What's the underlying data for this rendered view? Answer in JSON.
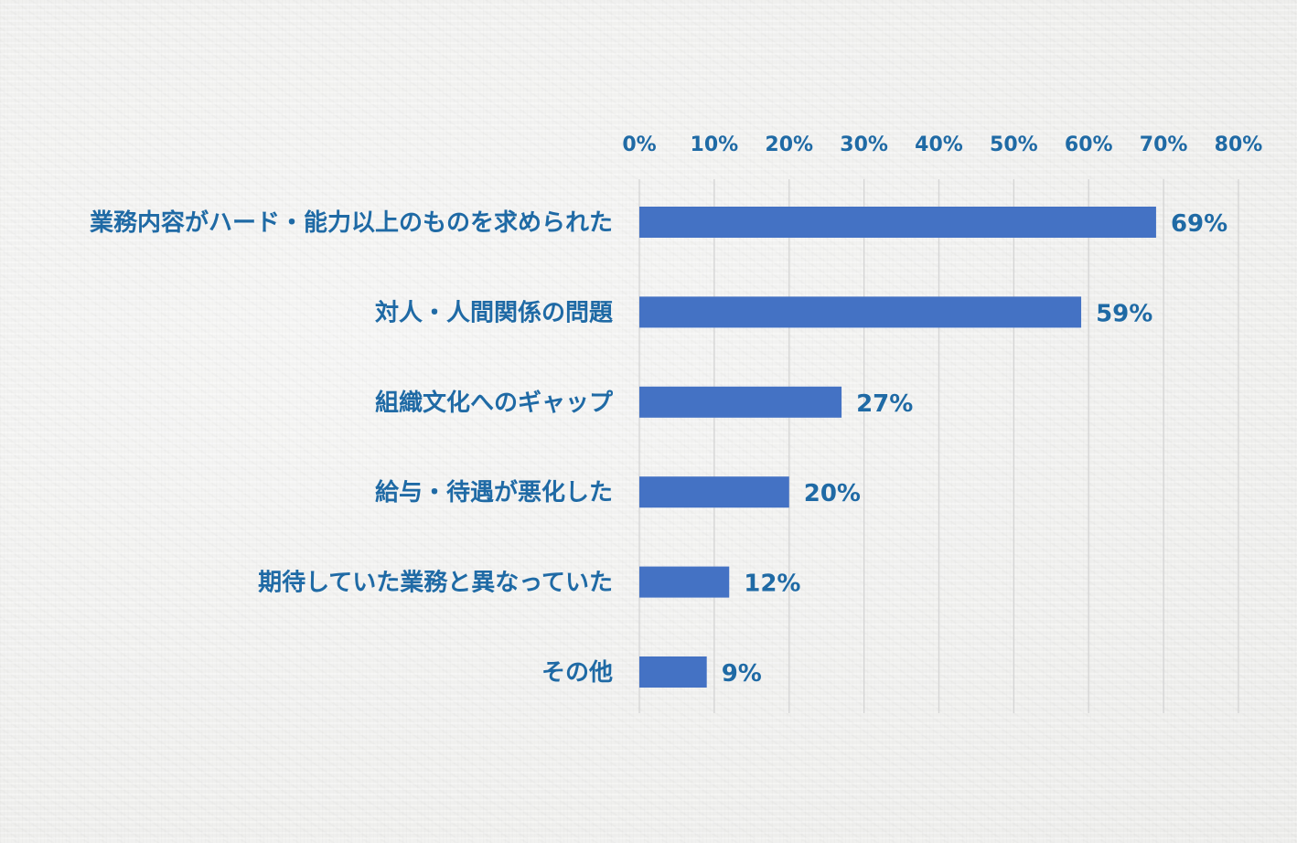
{
  "chart_data": {
    "type": "bar",
    "orientation": "horizontal",
    "title": "",
    "xlabel": "",
    "ylabel": "",
    "categories": [
      "業務内容がハード・能力以上のものを求められた",
      "対人・人間関係の問題",
      "組織文化へのギャップ",
      "給与・待遇が悪化した",
      "期待していた業務と異なっていた",
      "その他"
    ],
    "values": [
      69,
      59,
      27,
      20,
      12,
      9
    ],
    "value_labels": [
      "69%",
      "59%",
      "27%",
      "20%",
      "12%",
      "9%"
    ],
    "xlim": [
      0,
      80
    ],
    "x_ticks": [
      0,
      10,
      20,
      30,
      40,
      50,
      60,
      70,
      80
    ],
    "x_tick_labels": [
      "0%",
      "10%",
      "20%",
      "30%",
      "40%",
      "50%",
      "60%",
      "70%",
      "80%"
    ],
    "x_axis_position": "top",
    "grid": true,
    "legend": "none"
  },
  "colors": {
    "bar": "#4472c4",
    "text": "#1f6aa5",
    "grid": "#d4d4d4"
  }
}
